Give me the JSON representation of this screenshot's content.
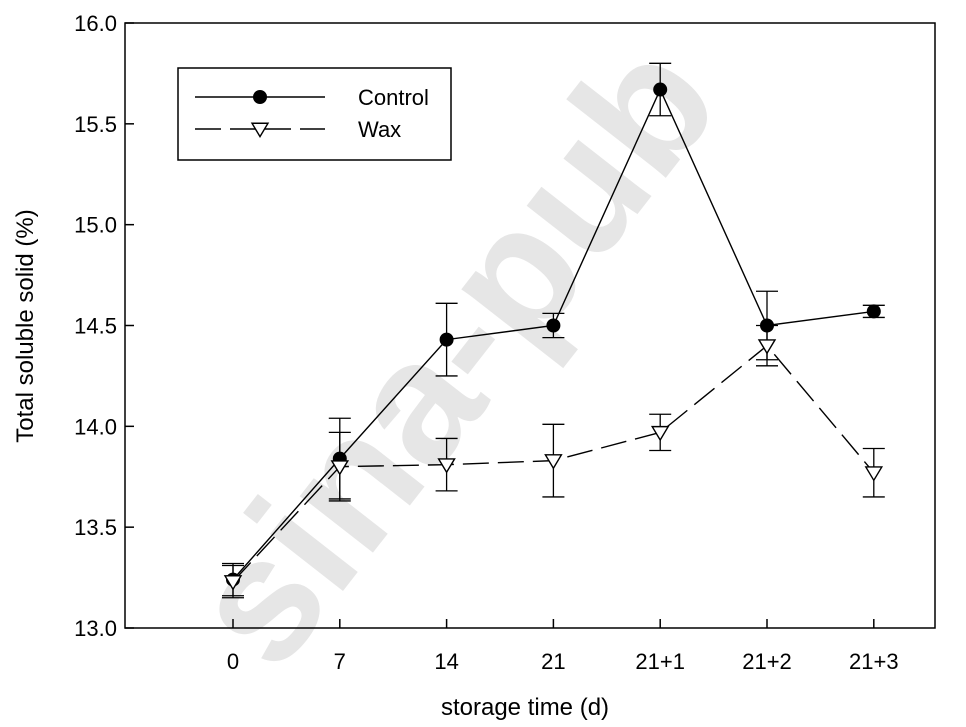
{
  "watermark": "sina-pub",
  "chart_data": {
    "type": "line",
    "title": "",
    "xlabel": "storage time (d)",
    "ylabel": "Total soluble solid (%)",
    "categories": [
      "0",
      "7",
      "14",
      "21",
      "21+1",
      "21+2",
      "21+3"
    ],
    "ylim": [
      13.0,
      16.0
    ],
    "yticks": [
      "13.0",
      "13.5",
      "14.0",
      "14.5",
      "15.0",
      "15.5",
      "16.0"
    ],
    "grid": false,
    "legend_position": "top-left",
    "series": [
      {
        "name": "Control",
        "marker": "filled-circle",
        "line_style": "solid",
        "color": "#000000",
        "values": [
          13.24,
          13.84,
          14.43,
          14.5,
          15.67,
          14.5,
          14.57
        ],
        "error": [
          0.08,
          0.2,
          0.18,
          0.06,
          0.13,
          0.17,
          0.03
        ]
      },
      {
        "name": "Wax",
        "marker": "open-triangle-down",
        "line_style": "dashed",
        "color": "#000000",
        "values": [
          13.23,
          13.8,
          13.81,
          13.83,
          13.97,
          14.4,
          13.77
        ],
        "error": [
          0.08,
          0.17,
          0.13,
          0.18,
          0.09,
          0.1,
          0.12
        ]
      }
    ]
  }
}
